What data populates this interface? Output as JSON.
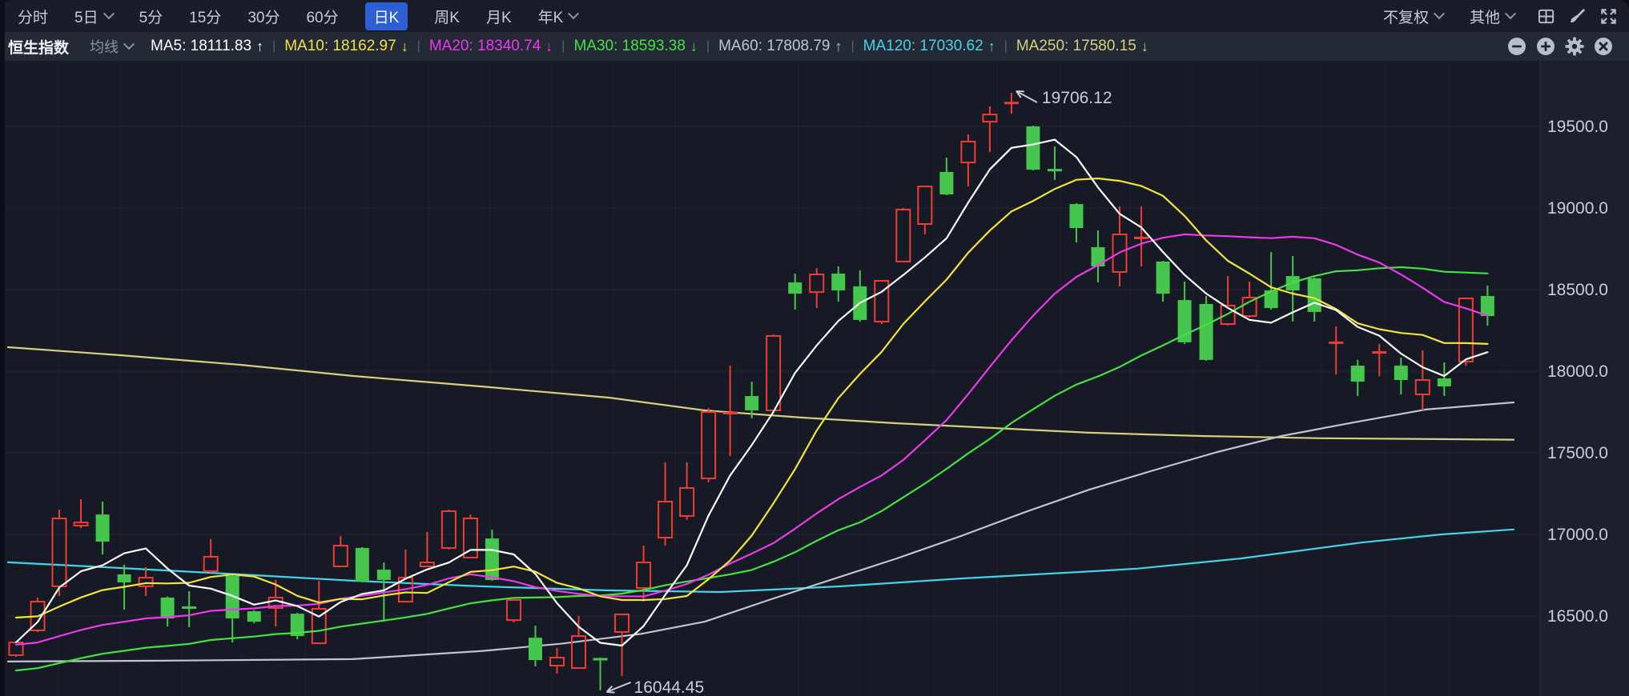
{
  "toolbar": {
    "period_tabs": [
      {
        "label": "分时",
        "chevron": false,
        "active": false
      },
      {
        "label": "5日",
        "chevron": true,
        "active": false
      },
      {
        "label": "5分",
        "chevron": false,
        "active": false
      },
      {
        "label": "15分",
        "chevron": false,
        "active": false
      },
      {
        "label": "30分",
        "chevron": false,
        "active": false
      },
      {
        "label": "60分",
        "chevron": false,
        "active": false
      },
      {
        "label": "日K",
        "chevron": false,
        "active": true
      },
      {
        "label": "周K",
        "chevron": false,
        "active": false
      },
      {
        "label": "月K",
        "chevron": false,
        "active": false
      },
      {
        "label": "年K",
        "chevron": true,
        "active": false
      }
    ],
    "right_menus": [
      {
        "label": "不复权",
        "chevron": true
      },
      {
        "label": "其他",
        "chevron": true
      }
    ],
    "right_icons": [
      "layout-grid-icon",
      "brush-icon",
      "expand-icon"
    ]
  },
  "legend": {
    "symbol": "恒生指数",
    "ma_selector_label": "均线",
    "ma_items": [
      {
        "label": "MA5:",
        "value": "18111.83",
        "dir": "up",
        "color": "#ffffff"
      },
      {
        "label": "MA10:",
        "value": "18162.97",
        "dir": "down",
        "color": "#f2e33c"
      },
      {
        "label": "MA20:",
        "value": "18340.74",
        "dir": "down",
        "color": "#ea3aea"
      },
      {
        "label": "MA30:",
        "value": "18593.38",
        "dir": "down",
        "color": "#46e046"
      },
      {
        "label": "MA60:",
        "value": "17808.79",
        "dir": "up",
        "color": "#bfc5cd"
      },
      {
        "label": "MA120:",
        "value": "17030.62",
        "dir": "up",
        "color": "#45d3e8"
      },
      {
        "label": "MA250:",
        "value": "17580.15",
        "dir": "down",
        "color": "#d6d07e"
      }
    ],
    "icons": [
      "zoom-out-icon",
      "zoom-in-icon",
      "settings-icon",
      "close-icon"
    ]
  },
  "y_axis": {
    "labels": [
      "19500.0",
      "19000.0",
      "18500.0",
      "18000.0",
      "17500.0",
      "17000.0",
      "16500.0"
    ]
  },
  "chart_data": {
    "type": "candlestick",
    "symbol": "恒生指数",
    "period": "日K",
    "up_color": "#f03c34",
    "down_color": "#45c64d",
    "ylim": [
      15900,
      19900
    ],
    "grid": true,
    "y_gridline_prices": [
      19500,
      19000,
      18500,
      18000,
      17500,
      17000,
      16500
    ],
    "annotations": [
      {
        "text": "19706.12",
        "anchor": "high",
        "candle_index": 46
      },
      {
        "text": "16044.45",
        "anchor": "low",
        "candle_index": 27
      }
    ],
    "candles": [
      [
        16260,
        16345,
        16250,
        16338
      ],
      [
        16412,
        16613,
        16402,
        16588
      ],
      [
        16682,
        17152,
        16623,
        17098
      ],
      [
        17054,
        17216,
        17039,
        17073
      ],
      [
        17122,
        17201,
        16877,
        16956
      ],
      [
        16755,
        16814,
        16539,
        16706
      ],
      [
        16682,
        16799,
        16623,
        16735
      ],
      [
        16613,
        16620,
        16436,
        16485
      ],
      [
        16554,
        16652,
        16431,
        16549
      ],
      [
        16775,
        16971,
        16765,
        16863
      ],
      [
        16745,
        16750,
        16338,
        16485
      ],
      [
        16529,
        16535,
        16455,
        16465
      ],
      [
        16549,
        16721,
        16436,
        16613
      ],
      [
        16514,
        16520,
        16357,
        16377
      ],
      [
        16333,
        16716,
        16328,
        16544
      ],
      [
        16804,
        16990,
        16799,
        16931
      ],
      [
        16917,
        16922,
        16706,
        16711
      ],
      [
        16784,
        16828,
        16465,
        16721
      ],
      [
        16588,
        16907,
        16583,
        16735
      ],
      [
        16804,
        17015,
        16799,
        16828
      ],
      [
        16917,
        17152,
        16907,
        17142
      ],
      [
        16858,
        17122,
        16853,
        17098
      ],
      [
        16975,
        17029,
        16716,
        16721
      ],
      [
        16475,
        16603,
        16460,
        16598
      ],
      [
        16367,
        16441,
        16191,
        16230
      ],
      [
        16196,
        16304,
        16147,
        16245
      ],
      [
        16181,
        16500,
        16176,
        16377
      ],
      [
        16240,
        16245,
        16044.45,
        16230
      ],
      [
        16402,
        16515,
        16132,
        16510
      ],
      [
        16672,
        16931,
        16588,
        16828
      ],
      [
        16980,
        17441,
        16931,
        17201
      ],
      [
        17113,
        17441,
        17089,
        17284
      ],
      [
        17343,
        17774,
        17319,
        17750
      ],
      [
        17740,
        18034,
        17480,
        17745
      ],
      [
        17848,
        17936,
        17711,
        17760
      ],
      [
        17760,
        18226,
        17745,
        18216
      ],
      [
        18544,
        18598,
        18377,
        18475
      ],
      [
        18485,
        18632,
        18387,
        18593
      ],
      [
        18598,
        18642,
        18426,
        18495
      ],
      [
        18520,
        18618,
        18304,
        18314
      ],
      [
        18304,
        18560,
        18289,
        18554
      ],
      [
        18672,
        19000,
        18667,
        18990
      ],
      [
        18902,
        19137,
        18838,
        19132
      ],
      [
        19221,
        19309,
        19078,
        19083
      ],
      [
        19279,
        19451,
        19132,
        19407
      ],
      [
        19529,
        19623,
        19343,
        19573
      ],
      [
        19640,
        19706.12,
        19578,
        19647
      ],
      [
        19500,
        19505,
        19230,
        19235
      ],
      [
        19235,
        19377,
        19172,
        19230
      ],
      [
        19024,
        19030,
        18789,
        18877
      ],
      [
        18760,
        18863,
        18544,
        18642
      ],
      [
        18608,
        19010,
        18520,
        18838
      ],
      [
        18814,
        19010,
        18642,
        18819
      ],
      [
        18672,
        18677,
        18426,
        18475
      ],
      [
        18436,
        18549,
        18167,
        18177
      ],
      [
        18412,
        18461,
        18064,
        18069
      ],
      [
        18289,
        18583,
        18279,
        18402
      ],
      [
        18338,
        18549,
        18328,
        18451
      ],
      [
        18495,
        18730,
        18377,
        18387
      ],
      [
        18583,
        18706,
        18304,
        18495
      ],
      [
        18569,
        18575,
        18304,
        18363
      ],
      [
        18172,
        18275,
        17980,
        18177
      ],
      [
        18034,
        18069,
        17848,
        17936
      ],
      [
        18113,
        18167,
        17970,
        18118
      ],
      [
        18034,
        18083,
        17858,
        17946
      ],
      [
        17858,
        18127,
        17760,
        17946
      ],
      [
        17956,
        18054,
        17848,
        17907
      ],
      [
        18059,
        18451,
        18034,
        18446
      ],
      [
        18461,
        18525,
        18279,
        18338
      ]
    ],
    "ma_overlays": {
      "MA60": {
        "color": "#bfc5cd",
        "points": [
          [
            10,
            16221
          ],
          [
            200,
            16226
          ],
          [
            440,
            16236
          ],
          [
            600,
            16285
          ],
          [
            700,
            16330
          ],
          [
            800,
            16390
          ],
          [
            880,
            16465
          ],
          [
            960,
            16598
          ],
          [
            1040,
            16726
          ],
          [
            1120,
            16853
          ],
          [
            1200,
            16990
          ],
          [
            1280,
            17137
          ],
          [
            1360,
            17274
          ],
          [
            1440,
            17392
          ],
          [
            1520,
            17505
          ],
          [
            1600,
            17603
          ],
          [
            1690,
            17686
          ],
          [
            1780,
            17765
          ],
          [
            1890,
            17808.79
          ]
        ]
      },
      "MA120": {
        "color": "#45d3e8",
        "points": [
          [
            10,
            16829
          ],
          [
            150,
            16794
          ],
          [
            300,
            16755
          ],
          [
            440,
            16716
          ],
          [
            600,
            16682
          ],
          [
            760,
            16657
          ],
          [
            900,
            16647
          ],
          [
            1050,
            16682
          ],
          [
            1200,
            16730
          ],
          [
            1350,
            16770
          ],
          [
            1420,
            16790
          ],
          [
            1550,
            16853
          ],
          [
            1700,
            16950
          ],
          [
            1800,
            17000
          ],
          [
            1890,
            17030.62
          ]
        ]
      },
      "MA250": {
        "color": "#d6d07e",
        "points": [
          [
            10,
            18147
          ],
          [
            150,
            18098
          ],
          [
            300,
            18039
          ],
          [
            440,
            17971
          ],
          [
            600,
            17907
          ],
          [
            760,
            17838
          ],
          [
            880,
            17760
          ],
          [
            1000,
            17716
          ],
          [
            1120,
            17681
          ],
          [
            1240,
            17652
          ],
          [
            1360,
            17623
          ],
          [
            1500,
            17603
          ],
          [
            1650,
            17589
          ],
          [
            1890,
            17580.15
          ]
        ]
      }
    },
    "ma_computed": {
      "MA30": {
        "window": 30,
        "seed": 16160,
        "color": "#46e046"
      },
      "MA20": {
        "window": 20,
        "seed": 16324,
        "color": "#ea3aea"
      },
      "MA10": {
        "window": 10,
        "seed": 16507,
        "color": "#f2e33c"
      },
      "MA5": {
        "window": 5,
        "seed": null,
        "color": "#ffffff"
      }
    }
  }
}
